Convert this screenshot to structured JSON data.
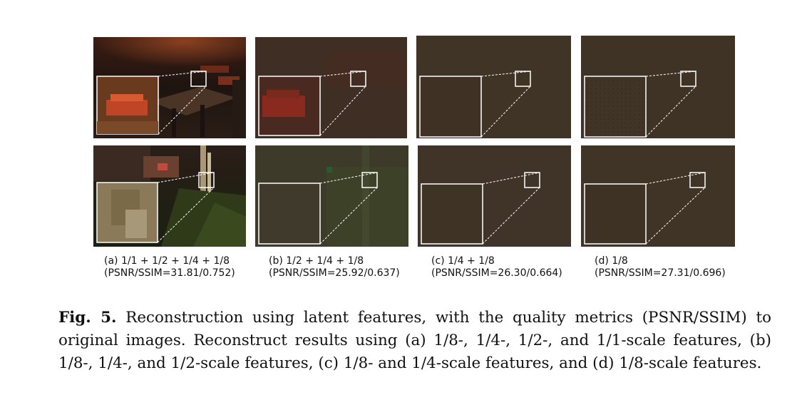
{
  "colors": {
    "feature_bg": "#3d3326",
    "inset_border": "#ffffff"
  },
  "subcaptions": [
    {
      "label": "(a) 1/1 + 1/2 + 1/4 + 1/8",
      "metrics": "(PSNR/SSIM=31.81/0.752)"
    },
    {
      "label": "(b) 1/2 + 1/4  + 1/8",
      "metrics": "(PSNR/SSIM=25.92/0.637)"
    },
    {
      "label": "(c) 1/4  + 1/8",
      "metrics": "(PSNR/SSIM=26.30/0.664)"
    },
    {
      "label": "(d) 1/8",
      "metrics": "(PSNR/SSIM=27.31/0.696)"
    }
  ],
  "caption": {
    "label": "Fig. 5.",
    "text": "Reconstruction using latent features, with the quality metrics (PSNR/SSIM) to original images. Reconstruct results using (a) 1/8-, 1/4-, 1/2-, and 1/1-scale features, (b) 1/8-, 1/4-, and 1/2-scale features, (c) 1/8- and 1/4-scale features, and (d) 1/8-scale features."
  }
}
